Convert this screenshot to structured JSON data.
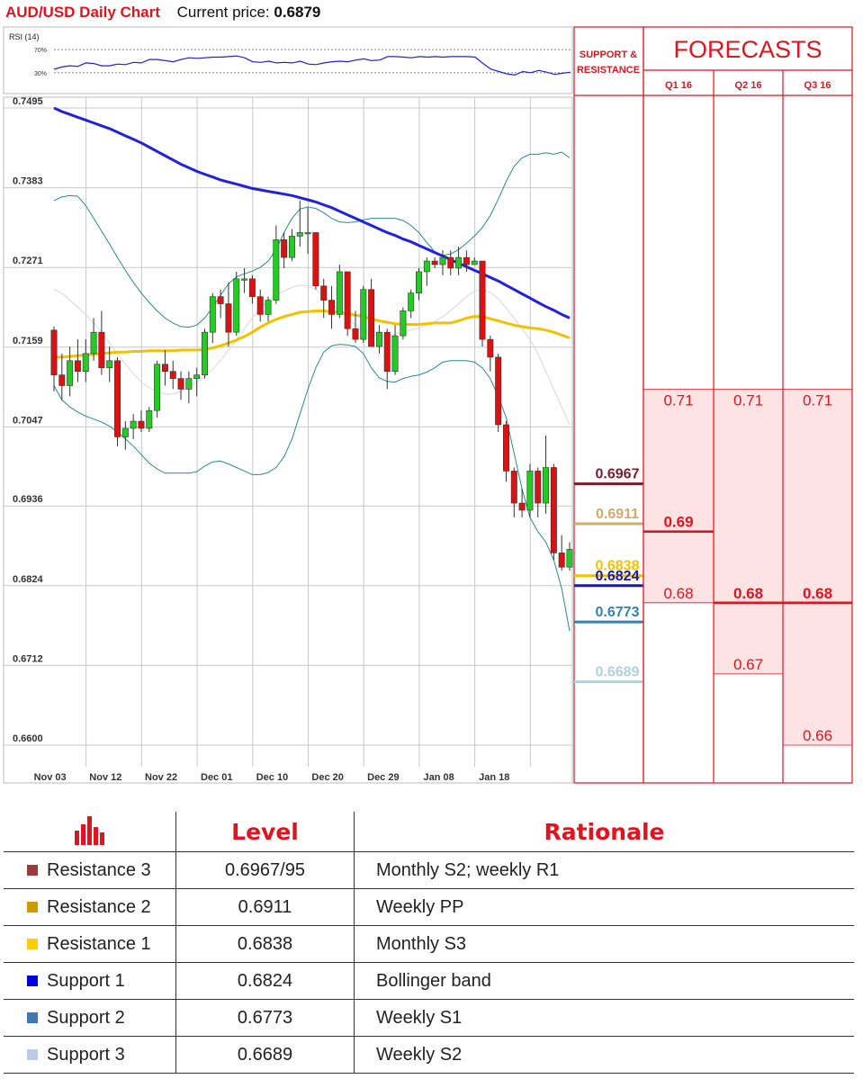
{
  "header": {
    "title": "AUD/USD Daily Chart",
    "price_label": "Current price:",
    "price_value": "0.6879"
  },
  "colors": {
    "red": "#e0141e",
    "bull": "#22cc22",
    "bear": "#dd1111",
    "ma_blue": "#2222dd",
    "ma_yellow": "#f2c200",
    "band": "#2a8a8a",
    "band_light": "#dddddd"
  },
  "chart_data": [
    {
      "type": "line",
      "title": "RSI (14)",
      "ylim": [
        0,
        100
      ],
      "reference_lines": [
        {
          "value": 70,
          "label": "70%"
        },
        {
          "value": 30,
          "label": "30%"
        }
      ],
      "values": [
        36,
        40,
        42,
        41,
        47,
        46,
        42,
        42,
        45,
        44,
        48,
        47,
        53,
        53,
        51,
        49,
        53,
        56,
        55,
        56,
        57,
        57,
        58,
        59,
        56,
        49,
        48,
        50,
        47,
        48,
        47,
        50,
        45,
        44,
        47,
        49,
        50,
        49,
        52,
        54,
        51,
        52,
        58,
        58,
        57,
        56,
        58,
        57,
        58,
        57,
        58,
        58,
        58,
        57,
        46,
        36,
        32,
        28,
        26,
        32,
        30,
        34,
        31,
        27,
        29,
        31
      ]
    },
    {
      "type": "candlestick",
      "ylim": [
        0.66,
        0.7495
      ],
      "yticks": [
        0.7495,
        0.7383,
        0.7271,
        0.7159,
        0.7047,
        0.6936,
        0.6824,
        0.6712,
        0.66
      ],
      "xticks": [
        {
          "label": "Nov 03",
          "index": 2
        },
        {
          "label": "Nov 12",
          "index": 9
        },
        {
          "label": "Nov 22",
          "index": 16
        },
        {
          "label": "Dec 01",
          "index": 23
        },
        {
          "label": "Dec 10",
          "index": 30
        },
        {
          "label": "Dec 20",
          "index": 37
        },
        {
          "label": "Dec 29",
          "index": 44
        },
        {
          "label": "Jan 08",
          "index": 51
        },
        {
          "label": "Jan 18",
          "index": 58
        }
      ],
      "candles": [
        [
          0.7183,
          0.7188,
          0.7097,
          0.712
        ],
        [
          0.712,
          0.715,
          0.7085,
          0.7105
        ],
        [
          0.7105,
          0.716,
          0.709,
          0.714
        ],
        [
          0.714,
          0.717,
          0.711,
          0.7125
        ],
        [
          0.7125,
          0.717,
          0.711,
          0.715
        ],
        [
          0.715,
          0.72,
          0.714,
          0.718
        ],
        [
          0.718,
          0.721,
          0.712,
          0.713
        ],
        [
          0.713,
          0.716,
          0.711,
          0.714
        ],
        [
          0.714,
          0.7145,
          0.702,
          0.7033
        ],
        [
          0.7033,
          0.7055,
          0.7015,
          0.7045
        ],
        [
          0.7045,
          0.7065,
          0.703,
          0.7055
        ],
        [
          0.7055,
          0.707,
          0.704,
          0.7045
        ],
        [
          0.7045,
          0.7075,
          0.704,
          0.707
        ],
        [
          0.707,
          0.714,
          0.706,
          0.7135
        ],
        [
          0.7135,
          0.7155,
          0.7105,
          0.7125
        ],
        [
          0.7125,
          0.714,
          0.71,
          0.7115
        ],
        [
          0.7115,
          0.7125,
          0.7085,
          0.71
        ],
        [
          0.71,
          0.7125,
          0.708,
          0.7115
        ],
        [
          0.7115,
          0.713,
          0.709,
          0.712
        ],
        [
          0.712,
          0.7185,
          0.7115,
          0.718
        ],
        [
          0.718,
          0.7235,
          0.7165,
          0.723
        ],
        [
          0.723,
          0.724,
          0.72,
          0.722
        ],
        [
          0.722,
          0.725,
          0.716,
          0.718
        ],
        [
          0.718,
          0.7265,
          0.7175,
          0.7255
        ],
        [
          0.7255,
          0.727,
          0.7235,
          0.7255
        ],
        [
          0.7255,
          0.726,
          0.722,
          0.723
        ],
        [
          0.723,
          0.724,
          0.7195,
          0.7205
        ],
        [
          0.7205,
          0.723,
          0.7195,
          0.7225
        ],
        [
          0.7225,
          0.733,
          0.722,
          0.731
        ],
        [
          0.731,
          0.732,
          0.727,
          0.7285
        ],
        [
          0.7285,
          0.7325,
          0.728,
          0.7315
        ],
        [
          0.7315,
          0.7365,
          0.73,
          0.732
        ],
        [
          0.732,
          0.7355,
          0.729,
          0.732
        ],
        [
          0.732,
          0.732,
          0.724,
          0.7245
        ],
        [
          0.7245,
          0.7255,
          0.72,
          0.7225
        ],
        [
          0.7225,
          0.7245,
          0.7185,
          0.7205
        ],
        [
          0.7205,
          0.7275,
          0.72,
          0.7265
        ],
        [
          0.7265,
          0.7265,
          0.7175,
          0.7185
        ],
        [
          0.7185,
          0.721,
          0.7165,
          0.717
        ],
        [
          0.717,
          0.7245,
          0.7165,
          0.724
        ],
        [
          0.724,
          0.7255,
          0.716,
          0.716
        ],
        [
          0.716,
          0.719,
          0.715,
          0.718
        ],
        [
          0.718,
          0.7185,
          0.71,
          0.7125
        ],
        [
          0.7125,
          0.719,
          0.712,
          0.7175
        ],
        [
          0.7175,
          0.7215,
          0.717,
          0.721
        ],
        [
          0.721,
          0.724,
          0.72,
          0.7235
        ],
        [
          0.7235,
          0.727,
          0.7225,
          0.7265
        ],
        [
          0.7265,
          0.7285,
          0.7245,
          0.728
        ],
        [
          0.728,
          0.7285,
          0.727,
          0.7275
        ],
        [
          0.7275,
          0.7295,
          0.726,
          0.7285
        ],
        [
          0.7285,
          0.7295,
          0.726,
          0.727
        ],
        [
          0.727,
          0.73,
          0.726,
          0.7285
        ],
        [
          0.7285,
          0.7295,
          0.7265,
          0.7275
        ],
        [
          0.7275,
          0.7285,
          0.7275,
          0.728
        ],
        [
          0.728,
          0.728,
          0.716,
          0.717
        ],
        [
          0.717,
          0.7175,
          0.7125,
          0.7145
        ],
        [
          0.7145,
          0.715,
          0.704,
          0.705
        ],
        [
          0.705,
          0.7055,
          0.697,
          0.6985
        ],
        [
          0.6985,
          0.699,
          0.692,
          0.694
        ],
        [
          0.694,
          0.696,
          0.692,
          0.693
        ],
        [
          0.693,
          0.6995,
          0.692,
          0.6985
        ],
        [
          0.6985,
          0.699,
          0.692,
          0.694
        ],
        [
          0.694,
          0.7035,
          0.6925,
          0.699
        ],
        [
          0.699,
          0.6995,
          0.686,
          0.687
        ],
        [
          0.687,
          0.6895,
          0.6845,
          0.685
        ],
        [
          0.685,
          0.6885,
          0.6845,
          0.6875
        ]
      ],
      "ma_blue": [
        0.7495,
        0.749,
        0.7486,
        0.7482,
        0.7478,
        0.7474,
        0.747,
        0.7466,
        0.7461,
        0.7456,
        0.7451,
        0.7446,
        0.744,
        0.7434,
        0.7428,
        0.7422,
        0.7416,
        0.7411,
        0.7406,
        0.7402,
        0.7398,
        0.7394,
        0.7391,
        0.7388,
        0.7385,
        0.7382,
        0.738,
        0.7378,
        0.7376,
        0.7374,
        0.7372,
        0.7369,
        0.7366,
        0.7363,
        0.7359,
        0.7355,
        0.735,
        0.7345,
        0.734,
        0.7335,
        0.733,
        0.7325,
        0.732,
        0.7316,
        0.7311,
        0.7307,
        0.7302,
        0.7297,
        0.7292,
        0.7287,
        0.7282,
        0.7277,
        0.7272,
        0.7267,
        0.7262,
        0.7257,
        0.7252,
        0.7246,
        0.724,
        0.7234,
        0.7228,
        0.7222,
        0.7216,
        0.7211,
        0.7205,
        0.72
      ],
      "ma_yellow": [
        0.7145,
        0.7145,
        0.7146,
        0.7147,
        0.7148,
        0.7149,
        0.715,
        0.7151,
        0.7152,
        0.7152,
        0.7153,
        0.7153,
        0.7154,
        0.7154,
        0.7154,
        0.7154,
        0.7155,
        0.7155,
        0.7155,
        0.7156,
        0.7158,
        0.7161,
        0.7165,
        0.7169,
        0.7174,
        0.718,
        0.7187,
        0.7193,
        0.7198,
        0.7202,
        0.7205,
        0.7208,
        0.7209,
        0.721,
        0.721,
        0.7209,
        0.7208,
        0.7206,
        0.7204,
        0.7202,
        0.7199,
        0.7196,
        0.7194,
        0.7192,
        0.7191,
        0.7191,
        0.7191,
        0.7192,
        0.7193,
        0.7193,
        0.7193,
        0.7196,
        0.72,
        0.7202,
        0.7202,
        0.7199,
        0.7196,
        0.7193,
        0.719,
        0.7188,
        0.7186,
        0.7185,
        0.7183,
        0.718,
        0.7176,
        0.7172
      ],
      "bb_upper": [
        0.7365,
        0.737,
        0.7372,
        0.7371,
        0.7358,
        0.734,
        0.7322,
        0.7304,
        0.7285,
        0.7267,
        0.725,
        0.7235,
        0.7222,
        0.721,
        0.72,
        0.7193,
        0.7188,
        0.7187,
        0.719,
        0.72,
        0.7215,
        0.7232,
        0.7248,
        0.7258,
        0.7262,
        0.7266,
        0.7271,
        0.728,
        0.7296,
        0.732,
        0.734,
        0.7353,
        0.7356,
        0.7354,
        0.7348,
        0.734,
        0.7335,
        0.7334,
        0.7335,
        0.7338,
        0.734,
        0.734,
        0.734,
        0.734,
        0.7337,
        0.733,
        0.732,
        0.7306,
        0.7293,
        0.7288,
        0.729,
        0.7296,
        0.7305,
        0.7315,
        0.7327,
        0.7344,
        0.7367,
        0.7392,
        0.7413,
        0.7425,
        0.743,
        0.743,
        0.7432,
        0.743,
        0.7433,
        0.7425
      ],
      "bb_lower": [
        0.7105,
        0.7085,
        0.7075,
        0.7068,
        0.7062,
        0.7058,
        0.7054,
        0.7048,
        0.704,
        0.703,
        0.702,
        0.7008,
        0.6996,
        0.6988,
        0.6982,
        0.6982,
        0.6982,
        0.6982,
        0.6984,
        0.6992,
        0.6998,
        0.6999,
        0.6995,
        0.699,
        0.6985,
        0.698,
        0.698,
        0.6983,
        0.699,
        0.7005,
        0.703,
        0.7065,
        0.71,
        0.713,
        0.7152,
        0.7161,
        0.7163,
        0.7162,
        0.716,
        0.715,
        0.713,
        0.7116,
        0.7111,
        0.711,
        0.7115,
        0.7118,
        0.712,
        0.7124,
        0.713,
        0.7138,
        0.714,
        0.714,
        0.714,
        0.7138,
        0.713,
        0.7115,
        0.709,
        0.706,
        0.701,
        0.696,
        0.692,
        0.69,
        0.6885,
        0.686,
        0.682,
        0.676
      ],
      "bb_light": [
        0.724,
        0.7235,
        0.7225,
        0.7215,
        0.7205,
        0.7193,
        0.718,
        0.7165,
        0.715,
        0.7135,
        0.7122,
        0.711,
        0.7102,
        0.7097,
        0.7093,
        0.7093,
        0.7097,
        0.7103,
        0.711,
        0.7118,
        0.7128,
        0.714,
        0.7155,
        0.717,
        0.7185,
        0.72,
        0.7213,
        0.7225,
        0.7232,
        0.7238,
        0.7243,
        0.7246,
        0.7245,
        0.724,
        0.723,
        0.722,
        0.721,
        0.72,
        0.719,
        0.7182,
        0.7177,
        0.7175,
        0.7175,
        0.7177,
        0.718,
        0.7183,
        0.7186,
        0.719,
        0.7195,
        0.7202,
        0.721,
        0.722,
        0.723,
        0.7238,
        0.724,
        0.7236,
        0.7227,
        0.7214,
        0.72,
        0.7185,
        0.717,
        0.715,
        0.7125,
        0.71,
        0.7075,
        0.705
      ]
    }
  ],
  "sr": {
    "header_line1": "SUPPORT &",
    "header_line2": "RESISTANCE",
    "levels": [
      {
        "value": 0.6967,
        "label": "0.6967",
        "color": "#7a1b2c"
      },
      {
        "value": 0.6911,
        "label": "0.6911",
        "color": "#d4aa6a"
      },
      {
        "value": 0.6838,
        "label": "0.6838",
        "color": "#f2c200"
      },
      {
        "value": 0.6824,
        "label": "0.6824",
        "color": "#1515cc"
      },
      {
        "value": 0.6773,
        "label": "0.6773",
        "color": "#3a7fad"
      },
      {
        "value": 0.6689,
        "label": "0.6689",
        "color": "#b4d0dc"
      }
    ]
  },
  "forecasts": {
    "title": "FORECASTS",
    "columns": [
      {
        "label": "Q1 16",
        "high": 0.71,
        "high_label": "0.71",
        "low": 0.68,
        "low_label": "0.68",
        "mid": 0.69,
        "mid_label": "0.69",
        "mid_bold": true
      },
      {
        "label": "Q2 16",
        "high": 0.71,
        "high_label": "0.71",
        "low": 0.67,
        "low_label": "0.67",
        "mid": 0.68,
        "mid_label": "0.68",
        "mid_bold": true
      },
      {
        "label": "Q3 16",
        "high": 0.71,
        "high_label": "0.71",
        "low": 0.66,
        "low_label": "0.66",
        "mid": 0.68,
        "mid_label": "0.68",
        "mid_bold": true
      }
    ]
  },
  "table": {
    "headers": {
      "level": "Level",
      "rationale": "Rationale"
    },
    "rows": [
      {
        "name": "Resistance 3",
        "color": "#9b3b3b",
        "level": "0.6967/95",
        "rationale": "Monthly S2; weekly R1"
      },
      {
        "name": "Resistance 2",
        "color": "#cc9a00",
        "level": "0.6911",
        "rationale": "Weekly PP"
      },
      {
        "name": "Resistance 1",
        "color": "#ffcc00",
        "level": "0.6838",
        "rationale": "Monthly S3"
      },
      {
        "name": "Support 1",
        "color": "#0000dd",
        "level": "0.6824",
        "rationale": "Bollinger band"
      },
      {
        "name": "Support 2",
        "color": "#3e78b6",
        "level": "0.6773",
        "rationale": "Weekly S1"
      },
      {
        "name": "Support 3",
        "color": "#b8cce4",
        "level": "0.6689",
        "rationale": "Weekly S2"
      }
    ]
  }
}
